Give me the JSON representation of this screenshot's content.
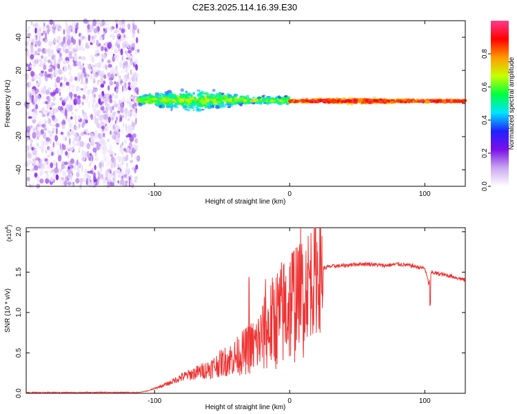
{
  "title": "C2E3.2025.114.16.39.E30",
  "chart_data": [
    {
      "type": "heatmap",
      "title": "C2E3.2025.114.16.39.E30",
      "xlabel": "Height of straight line (km)",
      "ylabel": "Frequency (Hz)",
      "xlim": [
        -195,
        130
      ],
      "ylim": [
        -50,
        50
      ],
      "x_ticks": [
        -100,
        0,
        100
      ],
      "y_ticks": [
        -40,
        -20,
        0,
        20,
        40
      ],
      "x_tick_labels": [
        "-100",
        "0",
        "100"
      ],
      "y_tick_labels": [
        "-40",
        "-20",
        "0",
        "20",
        "40"
      ],
      "colorbar": {
        "label": "Normalized spectral amplitude",
        "range": [
          0,
          1
        ],
        "ticks": [
          0.0,
          0.2,
          0.4,
          0.6,
          0.8
        ],
        "tick_labels": [
          "0.0",
          "0.2",
          "0.4",
          "0.6",
          "0.8"
        ],
        "colormap": [
          "#ffffff",
          "#c9a8f0",
          "#7a10e8",
          "#2020ff",
          "#00e5ff",
          "#00ff40",
          "#c8ff00",
          "#ff9a00",
          "#ff0000",
          "#ff3a8c"
        ]
      },
      "regions": [
        {
          "x_range": [
            -195,
            -112
          ],
          "f_range": [
            -50,
            50
          ],
          "description": "broadband noise",
          "amplitude_range": [
            0.03,
            0.22
          ]
        },
        {
          "x_range": [
            -112,
            0
          ],
          "f_center": 2,
          "f_spread": [
            3,
            8
          ],
          "amplitude_range": [
            0.2,
            0.75
          ]
        },
        {
          "x_range": [
            0,
            130
          ],
          "f_center": 1.5,
          "f_spread": [
            1,
            2
          ],
          "amplitude_range": [
            0.6,
            1.0
          ]
        }
      ]
    },
    {
      "type": "line",
      "xlabel": "Height of straight line (km)",
      "ylabel": "SNR (10 * v/v)",
      "scale_label": "(x10",
      "scale_exponent": "4",
      "scale_close": ")",
      "xlim": [
        -195,
        130
      ],
      "ylim": [
        0,
        2.05
      ],
      "x_ticks": [
        -100,
        0,
        100
      ],
      "y_ticks": [
        0.0,
        0.5,
        1.0,
        1.5,
        2.0
      ],
      "x_tick_labels": [
        "-100",
        "0",
        "100"
      ],
      "y_tick_labels": [
        "0.0",
        "0.5",
        "1.0",
        "1.5",
        "2.0"
      ],
      "color": "#ee3333",
      "series": [
        {
          "name": "SNR",
          "x": [
            -195,
            -150,
            -112,
            -105,
            -100,
            -90,
            -80,
            -70,
            -60,
            -50,
            -40,
            -30,
            -25,
            -20,
            -15,
            -10,
            -5,
            0,
            5,
            8,
            10,
            15,
            20,
            25,
            30,
            40,
            50,
            60,
            70,
            80,
            90,
            95,
            100,
            103,
            105,
            110,
            120,
            130
          ],
          "y": [
            0.01,
            0.01,
            0.01,
            0.03,
            0.06,
            0.12,
            0.2,
            0.25,
            0.3,
            0.38,
            0.45,
            0.55,
            0.6,
            0.7,
            0.82,
            0.92,
            1.0,
            1.1,
            1.2,
            1.25,
            1.3,
            1.4,
            1.5,
            1.55,
            1.57,
            1.58,
            1.6,
            1.6,
            1.58,
            1.6,
            1.58,
            1.56,
            1.55,
            1.35,
            1.5,
            1.48,
            1.45,
            1.4
          ]
        }
      ],
      "spikes": [
        {
          "x": -30,
          "y": 1.25
        },
        {
          "x": -18,
          "y": 1.4
        },
        {
          "x": 8,
          "y": 2.05
        },
        {
          "x": 10,
          "y": 0.35
        },
        {
          "x": 104,
          "y": 1.1
        }
      ]
    }
  ]
}
